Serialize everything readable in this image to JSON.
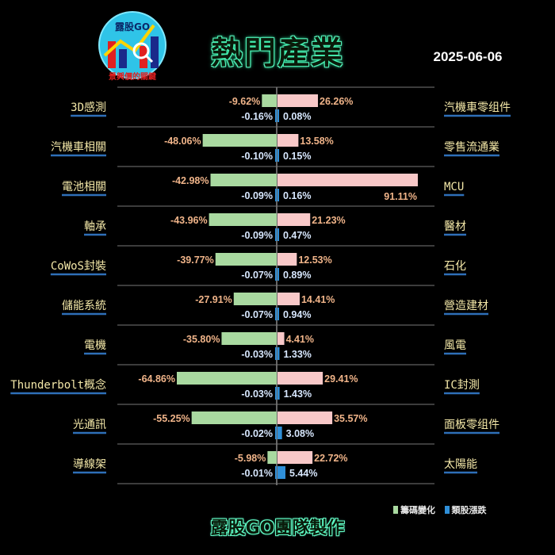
{
  "header": {
    "logo_top": "露股GO",
    "logo_bottom": "景興價的關鍵",
    "title": "熱門產業",
    "date": "2025-06-06"
  },
  "legend": {
    "chip_label": "籌碼變化",
    "price_label": "類股漲跌",
    "chip_color": "#a9d9a0",
    "price_color": "#2f8fd8"
  },
  "footer": "露股GO團隊製作",
  "colors": {
    "left_bar": "#a9d9a0",
    "right_bar": "#f8c8c8",
    "price_bar": "#2f8fd8",
    "chip_text": "#f0b489",
    "price_text": "#d8e8ff",
    "divider": "#cccccc"
  },
  "chart_data": {
    "type": "bar",
    "left_rows": [
      {
        "label": "3D感測",
        "chip": -9.62,
        "chip_text": "-9.62%",
        "price": -0.16,
        "price_text": "-0.16%"
      },
      {
        "label": "汽機車相關",
        "chip": -48.06,
        "chip_text": "-48.06%",
        "price": -0.1,
        "price_text": "-0.10%"
      },
      {
        "label": "電池相關",
        "chip": -42.98,
        "chip_text": "-42.98%",
        "price": -0.09,
        "price_text": "-0.09%"
      },
      {
        "label": "軸承",
        "chip": -43.96,
        "chip_text": "-43.96%",
        "price": -0.09,
        "price_text": "-0.09%"
      },
      {
        "label": "CoWoS封裝",
        "chip": -39.77,
        "chip_text": "-39.77%",
        "price": -0.07,
        "price_text": "-0.07%"
      },
      {
        "label": "儲能系統",
        "chip": -27.91,
        "chip_text": "-27.91%",
        "price": -0.07,
        "price_text": "-0.07%"
      },
      {
        "label": "電機",
        "chip": -35.8,
        "chip_text": "-35.80%",
        "price": -0.03,
        "price_text": "-0.03%"
      },
      {
        "label": "Thunderbolt概念",
        "chip": -64.86,
        "chip_text": "-64.86%",
        "price": -0.03,
        "price_text": "-0.03%"
      },
      {
        "label": "光通訊",
        "chip": -55.25,
        "chip_text": "-55.25%",
        "price": -0.02,
        "price_text": "-0.02%"
      },
      {
        "label": "導線架",
        "chip": -5.98,
        "chip_text": "-5.98%",
        "price": -0.01,
        "price_text": "-0.01%"
      }
    ],
    "right_rows": [
      {
        "label": "汽機車零组件",
        "chip": 26.26,
        "chip_text": "26.26%",
        "price": 0.08,
        "price_text": "0.08%"
      },
      {
        "label": "零售流通業",
        "chip": 13.58,
        "chip_text": "13.58%",
        "price": 0.15,
        "price_text": "0.15%"
      },
      {
        "label": "MCU",
        "chip": 91.11,
        "chip_text": "91.11%",
        "price": 0.16,
        "price_text": "0.16%"
      },
      {
        "label": "醫材",
        "chip": 21.23,
        "chip_text": "21.23%",
        "price": 0.47,
        "price_text": "0.47%"
      },
      {
        "label": "石化",
        "chip": 12.53,
        "chip_text": "12.53%",
        "price": 0.89,
        "price_text": "0.89%"
      },
      {
        "label": "營造建材",
        "chip": 14.41,
        "chip_text": "14.41%",
        "price": 0.94,
        "price_text": "0.94%"
      },
      {
        "label": "風電",
        "chip": 4.41,
        "chip_text": "4.41%",
        "price": 1.33,
        "price_text": "1.33%"
      },
      {
        "label": "IC封測",
        "chip": 29.41,
        "chip_text": "29.41%",
        "price": 1.43,
        "price_text": "1.43%"
      },
      {
        "label": "面板零组件",
        "chip": 35.57,
        "chip_text": "35.57%",
        "price": 3.08,
        "price_text": "3.08%"
      },
      {
        "label": "太陽能",
        "chip": 22.72,
        "chip_text": "22.72%",
        "price": 5.44,
        "price_text": "5.44%"
      }
    ],
    "chip_scale_max": 91.11,
    "price_scale_max": 5.44
  }
}
